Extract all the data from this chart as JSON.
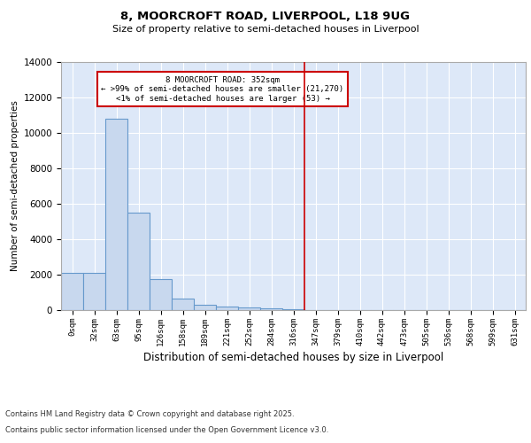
{
  "title": "8, MOORCROFT ROAD, LIVERPOOL, L18 9UG",
  "subtitle": "Size of property relative to semi-detached houses in Liverpool",
  "xlabel": "Distribution of semi-detached houses by size in Liverpool",
  "ylabel": "Number of semi-detached properties",
  "categories": [
    "0sqm",
    "32sqm",
    "63sqm",
    "95sqm",
    "126sqm",
    "158sqm",
    "189sqm",
    "221sqm",
    "252sqm",
    "284sqm",
    "316sqm",
    "347sqm",
    "379sqm",
    "410sqm",
    "442sqm",
    "473sqm",
    "505sqm",
    "536sqm",
    "568sqm",
    "599sqm",
    "631sqm"
  ],
  "bar_heights": [
    2100,
    2100,
    10800,
    5500,
    1750,
    650,
    320,
    200,
    130,
    100,
    50,
    0,
    0,
    0,
    0,
    0,
    0,
    0,
    0,
    0,
    0
  ],
  "bar_color": "#c8d8ee",
  "bar_edge_color": "#6699cc",
  "bar_edge_width": 0.8,
  "red_line_x": 10.5,
  "red_line_color": "#cc0000",
  "annotation_line1": "8 MOORCROFT ROAD: 352sqm",
  "annotation_line2": "← >99% of semi-detached houses are smaller (21,270)",
  "annotation_line3": "<1% of semi-detached houses are larger (53) →",
  "annotation_box_color": "#ffffff",
  "annotation_box_edge": "#cc0000",
  "ylim": [
    0,
    14000
  ],
  "yticks": [
    0,
    2000,
    4000,
    6000,
    8000,
    10000,
    12000,
    14000
  ],
  "background_color": "#dde8f8",
  "grid_color": "#ffffff",
  "footer_line1": "Contains HM Land Registry data © Crown copyright and database right 2025.",
  "footer_line2": "Contains public sector information licensed under the Open Government Licence v3.0."
}
